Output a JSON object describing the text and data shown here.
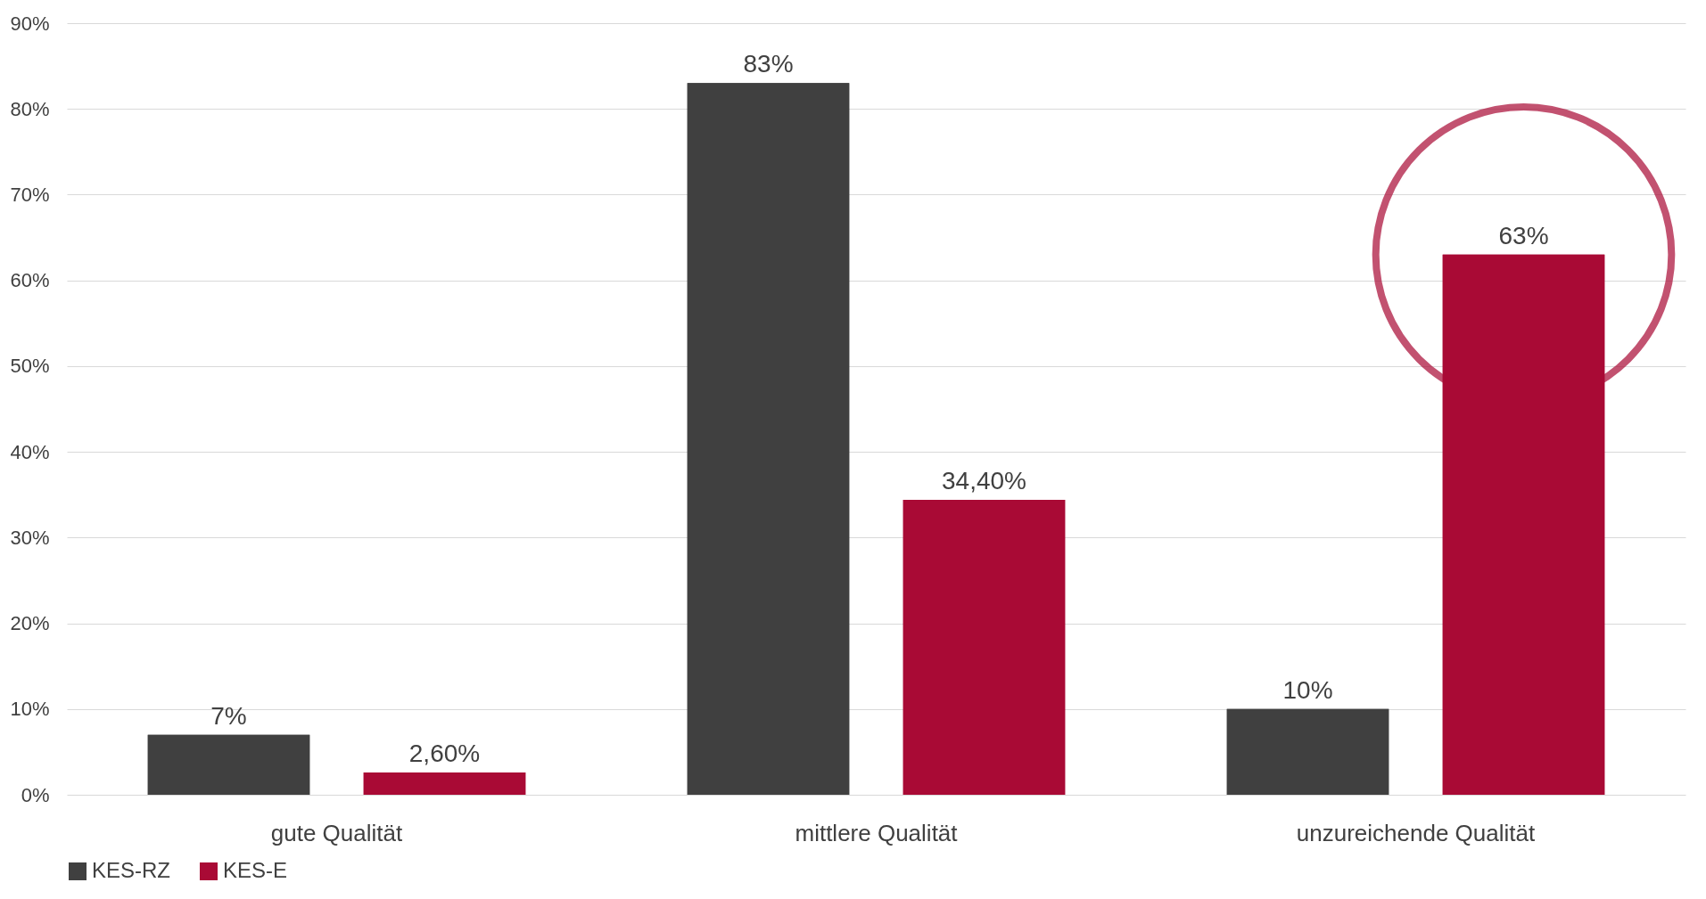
{
  "chart_data": {
    "type": "bar",
    "categories": [
      "gute Qualität",
      "mittlere Qualität",
      "unzureichende Qualität"
    ],
    "series": [
      {
        "name": "KES-RZ",
        "color": "#404040",
        "values": [
          7,
          83,
          10
        ],
        "value_labels": [
          "7%",
          "83%",
          "10%"
        ]
      },
      {
        "name": "KES-E",
        "color": "#a90a35",
        "values": [
          2.6,
          34.4,
          63
        ],
        "value_labels": [
          "2,60%",
          "34,40%",
          "63%"
        ]
      }
    ],
    "ylim": [
      0,
      90
    ],
    "yticks": [
      {
        "value": 0,
        "label": "0%"
      },
      {
        "value": 10,
        "label": "10%"
      },
      {
        "value": 20,
        "label": "20%"
      },
      {
        "value": 30,
        "label": "30%"
      },
      {
        "value": 40,
        "label": "40%"
      },
      {
        "value": 50,
        "label": "50%"
      },
      {
        "value": 60,
        "label": "60%"
      },
      {
        "value": 70,
        "label": "70%"
      },
      {
        "value": 80,
        "label": "80%"
      },
      {
        "value": 90,
        "label": "90%"
      }
    ],
    "grid": "y",
    "legend": "bottom"
  }
}
